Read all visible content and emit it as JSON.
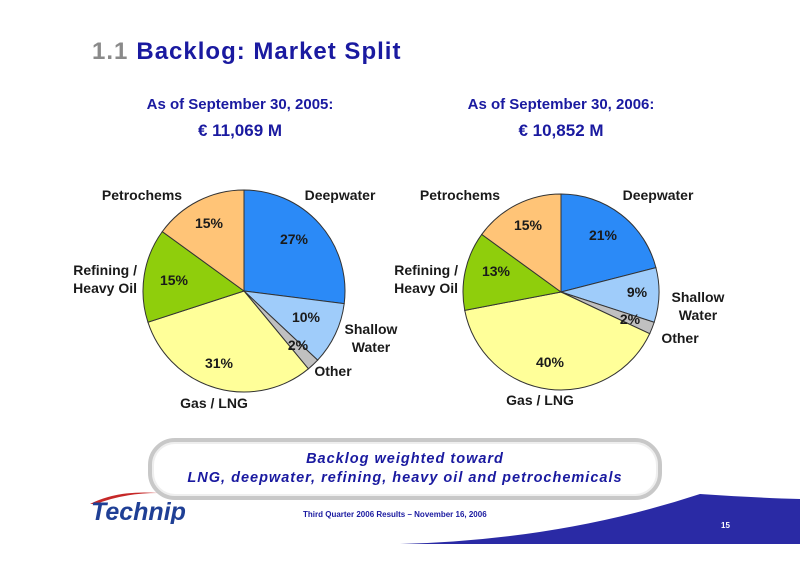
{
  "header": {
    "number": "1.1",
    "title": "Backlog: Market Split"
  },
  "chart_data": [
    {
      "type": "pie",
      "title": "As of September 30, 2005:",
      "subtitle": "€ 11,069 M",
      "slices": [
        {
          "label": "Deepwater",
          "value": 27,
          "value_label": "27%",
          "color": "#2b8af7"
        },
        {
          "label": "Shallow\nWater",
          "value": 10,
          "value_label": "10%",
          "color": "#9fccfa"
        },
        {
          "label": "Other",
          "value": 2,
          "value_label": "2%",
          "color": "#c0c0c0"
        },
        {
          "label": "Gas / LNG",
          "value": 31,
          "value_label": "31%",
          "color": "#ffff99"
        },
        {
          "label": "Refining /\nHeavy Oil",
          "value": 15,
          "value_label": "15%",
          "color": "#8fce0c"
        },
        {
          "label": "Petrochems",
          "value": 15,
          "value_label": "15%",
          "color": "#ffc477"
        }
      ]
    },
    {
      "type": "pie",
      "title": "As of September 30, 2006:",
      "subtitle": "€ 10,852 M",
      "slices": [
        {
          "label": "Deepwater",
          "value": 21,
          "value_label": "21%",
          "color": "#2b8af7"
        },
        {
          "label": "Shallow\nWater",
          "value": 9,
          "value_label": "9%",
          "color": "#9fccfa"
        },
        {
          "label": "Other",
          "value": 2,
          "value_label": "2%",
          "color": "#c0c0c0"
        },
        {
          "label": "Gas / LNG",
          "value": 40,
          "value_label": "40%",
          "color": "#ffff99"
        },
        {
          "label": "Refining /\nHeavy Oil",
          "value": 13,
          "value_label": "13%",
          "color": "#8fce0c"
        },
        {
          "label": "Petrochems",
          "value": 15,
          "value_label": "15%",
          "color": "#ffc477"
        }
      ]
    }
  ],
  "callout": {
    "line1": "Backlog weighted toward",
    "line2": "LNG, deepwater, refining, heavy oil and petrochemicals"
  },
  "logo": {
    "text": "Technip"
  },
  "footer": {
    "text": "Third Quarter 2006 Results – November 16, 2006",
    "page": "15"
  },
  "colors": {
    "title": "#1a1aa0",
    "footer_bar": "#2a2aa5"
  }
}
